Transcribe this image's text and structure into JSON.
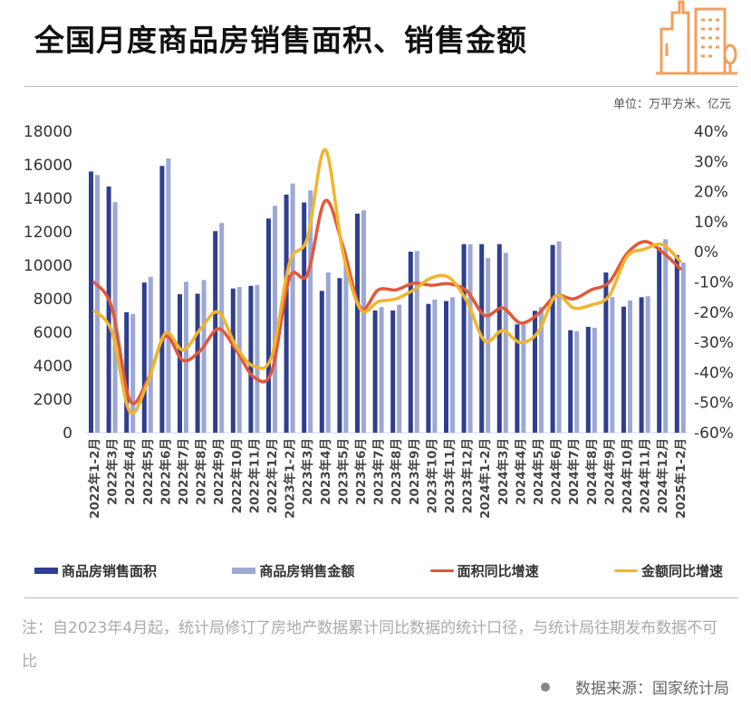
{
  "title": "全国月度商品房销售面积、销售金额",
  "unit": "单位：万平方米、亿元",
  "logo_icon": "building-icon",
  "colors": {
    "area_bar": "#2e3f8f",
    "amount_bar": "#9da8d4",
    "area_yoy": "#e2583a",
    "amount_yoy": "#f0b52e",
    "logo": "#f0a060"
  },
  "chart_data": {
    "type": "bar+line",
    "categories": [
      "2022年1-2月",
      "2022年3月",
      "2022年4月",
      "2022年5月",
      "2022年6月",
      "2022年7月",
      "2022年8月",
      "2022年9月",
      "2022年10月",
      "2022年11月",
      "2022年12月",
      "2023年1-2月",
      "2023年3月",
      "2023年4月",
      "2023年5月",
      "2023年6月",
      "2023年7月",
      "2023年8月",
      "2023年9月",
      "2023年10月",
      "2023年11月",
      "2023年12月",
      "2024年1-2月",
      "2024年3月",
      "2024年4月",
      "2024年5月",
      "2024年6月",
      "2024年7月",
      "2024年8月",
      "2024年9月",
      "2024年10月",
      "2024年11月",
      "2024年12月",
      "2025年1-2月"
    ],
    "left_axis": {
      "ylim": [
        0,
        18000
      ],
      "ticks": [
        "0",
        "2000",
        "4000",
        "6000",
        "8000",
        "10000",
        "12000",
        "14000",
        "16000",
        "18000"
      ]
    },
    "right_axis": {
      "ylim": [
        -60,
        40
      ],
      "ticks": [
        "-60%",
        "-50%",
        "-40%",
        "-30%",
        "-20%",
        "-10%",
        "0%",
        "10%",
        "20%",
        "30%",
        "40%"
      ]
    },
    "series": [
      {
        "name": "商品房销售面积",
        "type": "bar",
        "axis": "left",
        "values": [
          15600,
          14700,
          7190,
          8970,
          15930,
          8270,
          8300,
          12040,
          8610,
          8770,
          12790,
          14220,
          13750,
          8470,
          9230,
          13080,
          7300,
          7300,
          10810,
          7690,
          7860,
          11260,
          11260,
          11260,
          6470,
          7280,
          11210,
          6120,
          6320,
          9570,
          7530,
          8090,
          11060,
          10610
        ]
      },
      {
        "name": "商品房销售金额",
        "type": "bar",
        "axis": "left",
        "values": [
          15390,
          13770,
          7080,
          9310,
          16380,
          9010,
          9120,
          12520,
          8700,
          8810,
          13550,
          14880,
          14470,
          9570,
          10200,
          13280,
          7500,
          7640,
          10850,
          7950,
          8090,
          11260,
          10430,
          10740,
          6470,
          7500,
          11420,
          6070,
          6270,
          8100,
          7890,
          8150,
          11550,
          10160
        ]
      },
      {
        "name": "面积同比增速",
        "type": "line",
        "axis": "right",
        "values": [
          -10.1,
          -18.6,
          -49.1,
          -42.6,
          -28,
          -36,
          -32.6,
          -25.5,
          -32.6,
          -41.6,
          -39.6,
          -8.6,
          -7.6,
          16.9,
          2,
          -18.6,
          -12.6,
          -12.6,
          -10.4,
          -11.1,
          -10.6,
          -13.1,
          -21.1,
          -18.6,
          -23.6,
          -20.6,
          -14.6,
          -15.6,
          -12.6,
          -10.1,
          -0.6,
          3.4,
          -0.1,
          -5.6
        ]
      },
      {
        "name": "金额同比增速",
        "type": "line",
        "axis": "right",
        "values": [
          -19.6,
          -26.6,
          -53,
          -43.5,
          -27,
          -32.6,
          -25.5,
          -20,
          -31.5,
          -38,
          -34.6,
          -3.6,
          4.4,
          33.9,
          0,
          -19.1,
          -16.5,
          -15.6,
          -12.6,
          -8.6,
          -8.6,
          -16.5,
          -29.6,
          -26.1,
          -30.1,
          -26.6,
          -14.6,
          -18.6,
          -17.6,
          -14.6,
          -1.6,
          0.9,
          2.4,
          -3.1
        ]
      }
    ],
    "legend": [
      "商品房销售面积",
      "商品房销售金额",
      "面积同比增速",
      "金额同比增速"
    ],
    "legend_position": "bottom",
    "grid": false
  },
  "note": "注：自2023年4月起，统计局修订了房地产数据累计同比数据的统计口径，与统计局往期发布数据不可比",
  "source": "数据来源：国家统计局"
}
